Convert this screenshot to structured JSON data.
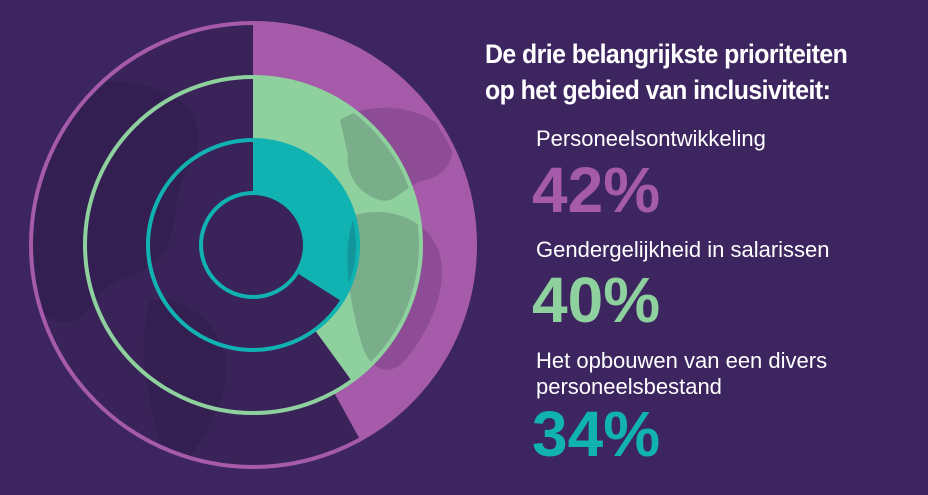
{
  "title": "De drie belangrijkste prioriteiten op het gebied van inclusiviteit:",
  "colors": {
    "background": "#3d2660",
    "dark_segment": "#3a2358",
    "purple": "#a65aaa",
    "green": "#8fd19e",
    "teal": "#10b3b2"
  },
  "chart_data": {
    "type": "pie",
    "title": "De drie belangrijkste prioriteiten op het gebied van inclusiviteit:",
    "series": [
      {
        "label": "Personeelsontwikkeling",
        "value": 42,
        "display": "42%",
        "color": "#a65aaa"
      },
      {
        "label": "Gendergelijkheid in salarissen",
        "value": 40,
        "display": "40%",
        "color": "#8fd19e"
      },
      {
        "label": "Het opbouwen van een divers personeelsbestand",
        "value": 34,
        "display": "34%",
        "color": "#10b3b2"
      }
    ]
  }
}
